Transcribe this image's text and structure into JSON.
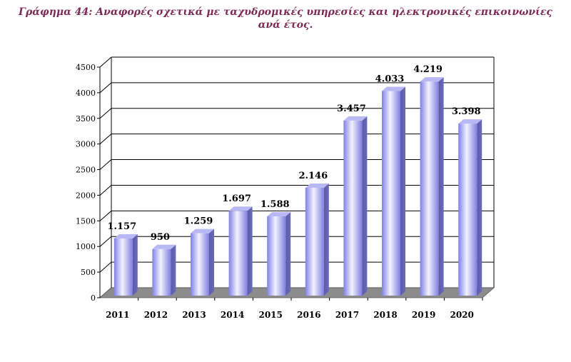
{
  "title_line1": "Γράφημα 44: Αναφορές σχετικά με ταχυδρομικές υπηρεσίες και ηλεκτρονικές επικοινωνίες",
  "title_line2": "ανά έτος.",
  "chart_data": {
    "type": "bar",
    "title": "Γράφημα 44: Αναφορές σχετικά με ταχυδρομικές υπηρεσίες και ηλεκτρονικές επικοινωνίες ανά έτος.",
    "categories": [
      "2011",
      "2012",
      "2013",
      "2014",
      "2015",
      "2016",
      "2017",
      "2018",
      "2019",
      "2020"
    ],
    "values": [
      1157,
      950,
      1259,
      1697,
      1588,
      2146,
      3457,
      4033,
      4219,
      3398
    ],
    "data_labels": [
      "1.157",
      "950",
      "1.259",
      "1.697",
      "1.588",
      "2.146",
      "3.457",
      "4.033",
      "4.219",
      "3.398"
    ],
    "yticks": [
      "0",
      "500",
      "1000",
      "1500",
      "2000",
      "2500",
      "3000",
      "3500",
      "4000",
      "4500"
    ],
    "ylim": [
      0,
      4500
    ],
    "grid": true,
    "three_d": true,
    "bar_color": "#9a9af2",
    "floor_color": "#8c8c8c"
  }
}
